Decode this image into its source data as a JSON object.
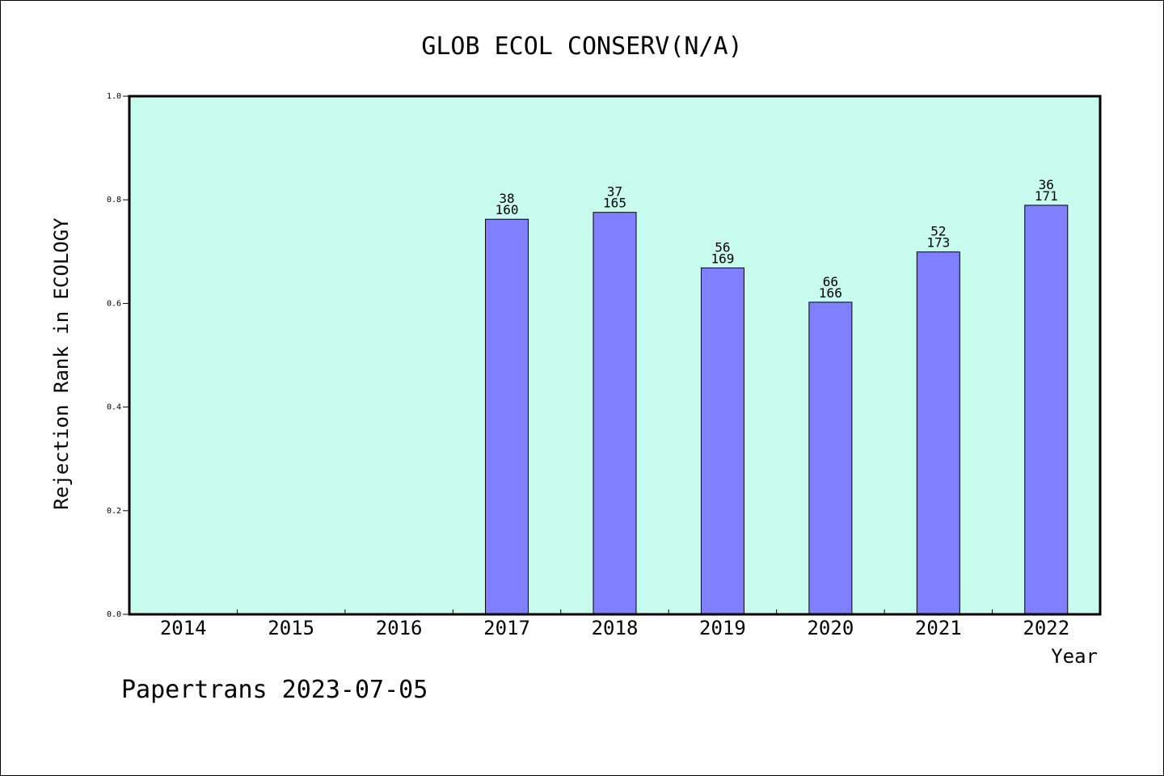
{
  "chart_data": {
    "type": "bar",
    "title": "GLOB ECOL CONSERV(N/A)",
    "xlabel": "Year",
    "ylabel": "Rejection Rank in ECOLOGY",
    "categories": [
      "2014",
      "2015",
      "2016",
      "2017",
      "2018",
      "2019",
      "2020",
      "2021",
      "2022"
    ],
    "values": [
      null,
      null,
      null,
      0.7625,
      0.7758,
      0.6686,
      0.6024,
      0.6994,
      0.7895
    ],
    "labels_top": [
      "",
      "",
      "",
      "38",
      "37",
      "56",
      "66",
      "52",
      "36"
    ],
    "labels_bottom": [
      "",
      "",
      "",
      "160",
      "165",
      "169",
      "166",
      "173",
      "171"
    ],
    "ylim": [
      0,
      1.0
    ],
    "yticks": [
      "0.0",
      "0.2",
      "0.4",
      "0.6",
      "0.8",
      "1.0"
    ],
    "grid": false,
    "colors": {
      "plot_bg": "#c8fcee",
      "bar": "#8080ff",
      "axis": "#000000"
    }
  },
  "footer": {
    "text": "Papertrans 2023-07-05"
  }
}
